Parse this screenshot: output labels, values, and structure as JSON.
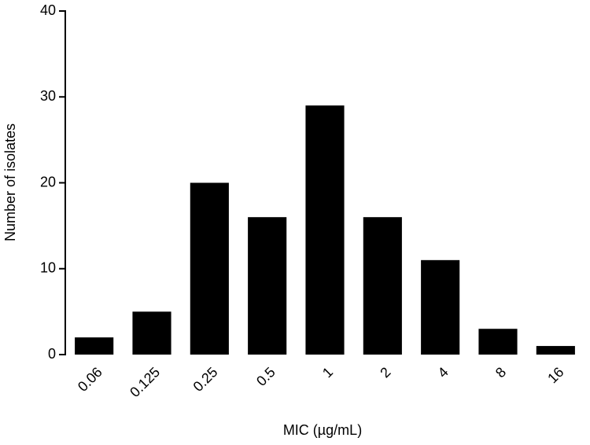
{
  "chart_data": {
    "type": "bar",
    "x_label": "MIC (µg/mL)",
    "y_label": "Number of isolates",
    "categories": [
      "0.06",
      "0.125",
      "0.25",
      "0.5",
      "1",
      "2",
      "4",
      "8",
      "16"
    ],
    "values": [
      2,
      5,
      20,
      16,
      29,
      16,
      11,
      3,
      1
    ],
    "color": "#000000",
    "ylim": [
      0,
      40
    ],
    "yticks": [
      0,
      10,
      20,
      30,
      40
    ],
    "grid": false
  }
}
